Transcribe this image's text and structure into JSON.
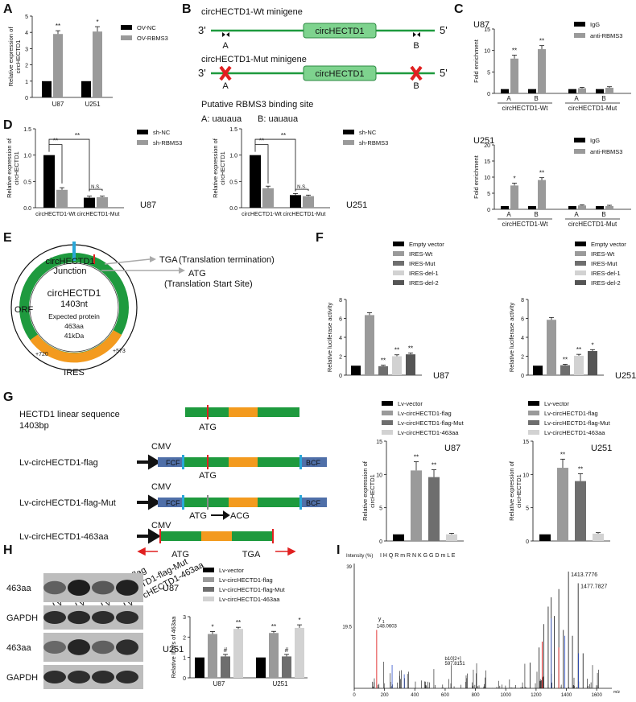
{
  "panel_labels": [
    "A",
    "B",
    "C",
    "D",
    "E",
    "F",
    "G",
    "H",
    "I"
  ],
  "colors": {
    "black": "#000000",
    "gray": "#9a9a9a",
    "dark_gray": "#6e6e6e",
    "light_gray": "#d2d2d2",
    "green": "#1e9a3e",
    "orange": "#f39a1e",
    "blue_box": "#4f6fa8",
    "red": "#e02020",
    "cyan": "#2aa7d8",
    "arrow_gray": "#aaaaaa"
  },
  "panelA": {
    "legend": [
      "OV-NC",
      "OV-RBMS3"
    ],
    "ylabel": "Relative expression of circHECTD1",
    "yticks": [
      "0",
      "1",
      "2",
      "3",
      "4",
      "5"
    ],
    "categories": [
      "U87",
      "U251"
    ],
    "sig": [
      "**",
      "*"
    ]
  },
  "panelB": {
    "wt_title": "circHECTD1-Wt minigene",
    "mut_title": "circHECTD1-Mut minigene",
    "box_label": "circHECTD1",
    "end3": "3'",
    "end5": "5'",
    "site_a": "A",
    "site_b": "B",
    "binding_title": "Putative RBMS3 binding site",
    "binding_a": "A: uauaua",
    "binding_b": "B: uauaua"
  },
  "panelC": {
    "legend": [
      "IgG",
      "anti-RBMS3"
    ],
    "ylabel": "Fold enrichment",
    "yticks_u87": [
      "0",
      "5",
      "10",
      "15"
    ],
    "yticks_u251": [
      "0",
      "5",
      "10",
      "15",
      "20"
    ],
    "cell_u87": "U87",
    "cell_u251": "U251",
    "xlabels": [
      "A",
      "B",
      "A",
      "B"
    ],
    "groups": [
      "circHECTD1-Wt",
      "circHECTD1-Mut"
    ],
    "sig_u87": [
      "**",
      "**"
    ],
    "sig_u251": [
      "*",
      "**"
    ]
  },
  "panelD": {
    "legend": [
      "sh-NC",
      "sh-RBMS3"
    ],
    "ylabel": "Relative expression of circHECTD1",
    "yticks": [
      "0.0",
      "0.5",
      "1.0",
      "1.5"
    ],
    "categories": [
      "circHECTD1-Wt",
      "circHECTD1-Mut"
    ],
    "cell_left": "U87",
    "cell_right": "U251",
    "sig1": "**",
    "sig2": "**",
    "ns": "N.S."
  },
  "panelE": {
    "junction1": "circHECTD1",
    "junction2": "Junction",
    "tga": "TGA",
    "tga_note": "(Translation termination)",
    "atg": "ATG",
    "atg_note": "(Translation Start Site)",
    "orf": "ORF",
    "center1": "circHECTD1",
    "center2": "1403nt",
    "protein1": "Expected protein",
    "protein2": "463aa",
    "protein3": "41kDa",
    "pos720": "+720",
    "pos573": "+573",
    "ires": "IRES"
  },
  "panelF": {
    "legend": [
      "Empty vector",
      "IRES-Wt",
      "IRES-Mut",
      "IRES-del-1",
      "IRES-del-2"
    ],
    "ylabel": "Relative luciferase activity",
    "yticks": [
      "0",
      "2",
      "4",
      "6",
      "8"
    ],
    "cell_left": "U87",
    "cell_right": "U251",
    "sig_left": [
      "**",
      "**",
      "**"
    ],
    "sig_right": [
      "**",
      "**",
      "*"
    ]
  },
  "panelG": {
    "linear1": "HECTD1 linear sequence",
    "linear2": "1403bp",
    "constructs": [
      "Lv-circHECTD1-flag",
      "Lv-circHECTD1-flag-Mut",
      "Lv-circHECTD1-463aa"
    ],
    "cmv": "CMV",
    "fcf": "FCF",
    "bcf": "BCF",
    "atg": "ATG",
    "acg": "ACG",
    "tga": "TGA",
    "legend": [
      "Lv-vector",
      "Lv-circHECTD1-flag",
      "Lv-circHECTD1-flag-Mut",
      "Lv-circHECTD1-463aa"
    ],
    "ylabel": "Relative expression of circHECTD1",
    "yticks": [
      "0",
      "5",
      "10",
      "15"
    ],
    "cell_left": "U87",
    "cell_right": "U251",
    "sig": [
      "**",
      "**"
    ]
  },
  "panelH": {
    "lanes": [
      "Lv-vector",
      "Lv-circHECTD1-flag",
      "Lv-circHECTD1-flag-Mut",
      "Lv-circHECTD1-463aa"
    ],
    "blot_rows": [
      "463aa",
      "GAPDH",
      "463aa",
      "GAPDH"
    ],
    "cells": [
      "U87",
      "U251"
    ],
    "legend": [
      "Lv-vector",
      "Lv-circHECTD1-flag",
      "Lv-circHECTD1-flag-Mut",
      "Lv-circHECTD1-463aa"
    ],
    "ylabel": "Relative IDVs of 463aa",
    "yticks": [
      "0",
      "1",
      "2",
      "3"
    ],
    "categories": [
      "U87",
      "U251"
    ],
    "sig_u87": [
      "*",
      "#",
      "**"
    ],
    "sig_u251": [
      "**",
      "#",
      "*"
    ]
  },
  "panelI": {
    "intensity_label": "Intensity (%)",
    "sequence": "I H Q R m R N K G G D m L E",
    "ytick_top": "39",
    "ytick_mid": "19.5",
    "y1": "y",
    "y1_sub": "1",
    "y1_mz": "148.0603",
    "b10": "b10[2+]",
    "b10_mz": "597.8151",
    "peak1": "1413.7776",
    "peak2": "1477.7827",
    "xticks": [
      "0",
      "200",
      "400",
      "600",
      "800",
      "1000",
      "1200",
      "1400",
      "1600"
    ],
    "xunit": "m/z"
  },
  "chart_data": [
    {
      "type": "bar",
      "panel": "A",
      "categories": [
        "U87",
        "U251"
      ],
      "series": [
        {
          "name": "OV-NC",
          "values": [
            1,
            1
          ]
        },
        {
          "name": "OV-RBMS3",
          "values": [
            3.9,
            4.05
          ]
        }
      ],
      "ylabel": "Relative expression of circHECTD1",
      "ylim": [
        0,
        5
      ]
    },
    {
      "type": "bar",
      "panel": "C-U87",
      "categories": [
        "Wt A",
        "Wt B",
        "Mut A",
        "Mut B"
      ],
      "series": [
        {
          "name": "IgG",
          "values": [
            1,
            1,
            1,
            1
          ]
        },
        {
          "name": "anti-RBMS3",
          "values": [
            8.1,
            10.3,
            1.2,
            1.3
          ]
        }
      ],
      "ylabel": "Fold enrichment",
      "ylim": [
        0,
        15
      ]
    },
    {
      "type": "bar",
      "panel": "C-U251",
      "categories": [
        "Wt A",
        "Wt B",
        "Mut A",
        "Mut B"
      ],
      "series": [
        {
          "name": "IgG",
          "values": [
            1,
            1,
            1,
            1
          ]
        },
        {
          "name": "anti-RBMS3",
          "values": [
            7.4,
            9.1,
            1.2,
            1.0
          ]
        }
      ],
      "ylabel": "Fold enrichment",
      "ylim": [
        0,
        20
      ]
    },
    {
      "type": "bar",
      "panel": "D-U87",
      "categories": [
        "circHECTD1-Wt",
        "circHECTD1-Mut"
      ],
      "series": [
        {
          "name": "sh-NC",
          "values": [
            1.0,
            0.19
          ]
        },
        {
          "name": "sh-RBMS3",
          "values": [
            0.34,
            0.2
          ]
        }
      ],
      "ylabel": "Relative expression of circHECTD1",
      "ylim": [
        0,
        1.5
      ]
    },
    {
      "type": "bar",
      "panel": "D-U251",
      "categories": [
        "circHECTD1-Wt",
        "circHECTD1-Mut"
      ],
      "series": [
        {
          "name": "sh-NC",
          "values": [
            1.0,
            0.24
          ]
        },
        {
          "name": "sh-RBMS3",
          "values": [
            0.37,
            0.22
          ]
        }
      ],
      "ylabel": "Relative expression of circHECTD1",
      "ylim": [
        0,
        1.5
      ]
    },
    {
      "type": "bar",
      "panel": "F-U87",
      "categories": [
        "Empty vector",
        "IRES-Wt",
        "IRES-Mut",
        "IRES-del-1",
        "IRES-del-2"
      ],
      "values": [
        1,
        6.35,
        0.95,
        2.0,
        2.2
      ],
      "ylabel": "Relative luciferase activity",
      "ylim": [
        0,
        8
      ]
    },
    {
      "type": "bar",
      "panel": "F-U251",
      "categories": [
        "Empty vector",
        "IRES-Wt",
        "IRES-Mut",
        "IRES-del-1",
        "IRES-del-2"
      ],
      "values": [
        1,
        5.85,
        1.05,
        2.05,
        2.55
      ],
      "ylabel": "Relative luciferase activity",
      "ylim": [
        0,
        8
      ]
    },
    {
      "type": "bar",
      "panel": "G-U87",
      "categories": [
        "Lv-vector",
        "Lv-circHECTD1-flag",
        "Lv-circHECTD1-flag-Mut",
        "Lv-circHECTD1-463aa"
      ],
      "values": [
        1,
        10.6,
        9.6,
        1.0
      ],
      "ylabel": "Relative expression of circHECTD1",
      "ylim": [
        0,
        15
      ]
    },
    {
      "type": "bar",
      "panel": "G-U251",
      "categories": [
        "Lv-vector",
        "Lv-circHECTD1-flag",
        "Lv-circHECTD1-flag-Mut",
        "Lv-circHECTD1-463aa"
      ],
      "values": [
        1,
        11.0,
        9.0,
        1.1
      ],
      "ylabel": "Relative expression of circHECTD1",
      "ylim": [
        0,
        15
      ]
    },
    {
      "type": "bar",
      "panel": "H",
      "categories": [
        "U87",
        "U251"
      ],
      "series": [
        {
          "name": "Lv-vector",
          "values": [
            1,
            1
          ]
        },
        {
          "name": "Lv-circHECTD1-flag",
          "values": [
            2.15,
            2.2
          ]
        },
        {
          "name": "Lv-circHECTD1-flag-Mut",
          "values": [
            1.05,
            1.05
          ]
        },
        {
          "name": "Lv-circHECTD1-463aa",
          "values": [
            2.4,
            2.45
          ]
        }
      ],
      "ylabel": "Relative IDVs of 463aa",
      "ylim": [
        0,
        3
      ]
    },
    {
      "type": "spectrum",
      "panel": "I",
      "xlim": [
        0,
        1700
      ],
      "labeled_peaks": [
        {
          "mz": 148.0603,
          "label": "y1",
          "intensity": 0.5
        },
        {
          "mz": 597.8151,
          "label": "b10[2+]",
          "intensity": 0.18
        },
        {
          "mz": 1413.7776,
          "intensity": 1.0
        },
        {
          "mz": 1477.7827,
          "intensity": 0.9
        }
      ]
    }
  ]
}
